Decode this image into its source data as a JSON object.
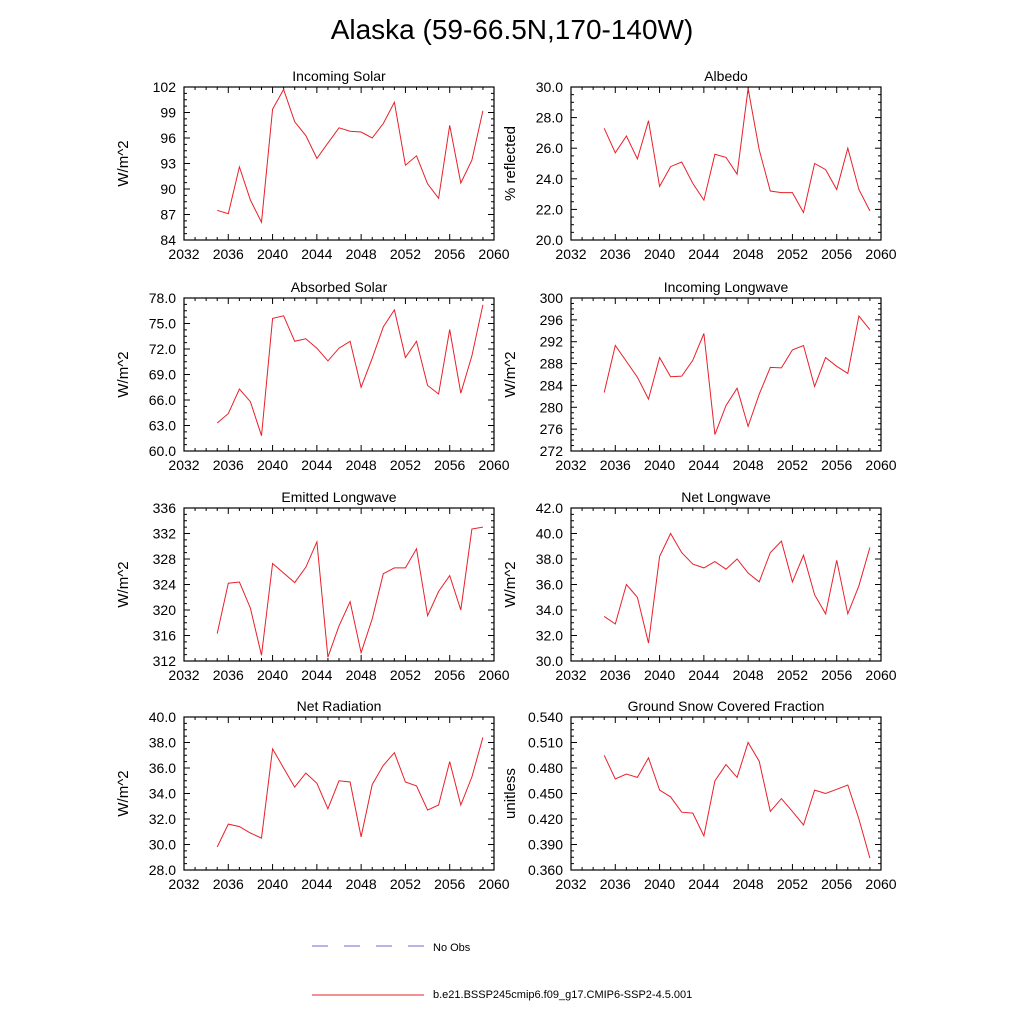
{
  "title": "Alaska (59-66.5N,170-140W)",
  "legend": {
    "obs_label": "No Obs",
    "model_label": "b.e21.BSSP245cmip6.f09_g17.CMIP6-SSP2-4.5.001",
    "obs_color": "#6b6bd6",
    "model_color": "#e8202a"
  },
  "chart_data": [
    {
      "type": "line",
      "title": "Incoming Solar",
      "ylabel": "W/m^2",
      "xlim": [
        2032,
        2060
      ],
      "ylim": [
        84,
        102
      ],
      "xticks": [
        2032,
        2036,
        2040,
        2044,
        2048,
        2052,
        2056,
        2060
      ],
      "yticks": [
        "84",
        "87",
        "90",
        "93",
        "96",
        "99",
        "102"
      ],
      "series": [
        {
          "x": [
            2035,
            2036,
            2037,
            2038,
            2039,
            2040,
            2041,
            2042,
            2043,
            2044,
            2045,
            2046,
            2047,
            2048,
            2049,
            2050,
            2051,
            2052,
            2053,
            2054,
            2055,
            2056,
            2057,
            2058,
            2059
          ],
          "values": [
            87.5,
            87.1,
            92.6,
            88.7,
            86.1,
            99.4,
            101.7,
            97.9,
            96.3,
            93.6,
            95.4,
            97.2,
            96.8,
            96.7,
            96.0,
            97.7,
            100.2,
            92.8,
            93.9,
            90.6,
            88.9,
            97.5,
            90.7,
            93.4,
            99.2
          ]
        }
      ]
    },
    {
      "type": "line",
      "title": "Albedo",
      "ylabel": "% reflected",
      "xlim": [
        2032,
        2060
      ],
      "ylim": [
        20,
        30
      ],
      "xticks": [
        2032,
        2036,
        2040,
        2044,
        2048,
        2052,
        2056,
        2060
      ],
      "yticks": [
        "20.0",
        "22.0",
        "24.0",
        "26.0",
        "28.0",
        "30.0"
      ],
      "series": [
        {
          "x": [
            2035,
            2036,
            2037,
            2038,
            2039,
            2040,
            2041,
            2042,
            2043,
            2044,
            2045,
            2046,
            2047,
            2048,
            2049,
            2050,
            2051,
            2052,
            2053,
            2054,
            2055,
            2056,
            2057,
            2058,
            2059
          ],
          "values": [
            27.3,
            25.7,
            26.8,
            25.3,
            27.8,
            23.5,
            24.8,
            25.1,
            23.7,
            22.6,
            25.6,
            25.4,
            24.3,
            29.9,
            25.9,
            23.2,
            23.1,
            23.1,
            21.8,
            25.0,
            24.6,
            23.3,
            26.0,
            23.3,
            21.9
          ]
        }
      ]
    },
    {
      "type": "line",
      "title": "Absorbed Solar",
      "ylabel": "W/m^2",
      "xlim": [
        2032,
        2060
      ],
      "ylim": [
        60,
        78
      ],
      "xticks": [
        2032,
        2036,
        2040,
        2044,
        2048,
        2052,
        2056,
        2060
      ],
      "yticks": [
        "60.0",
        "63.0",
        "66.0",
        "69.0",
        "72.0",
        "75.0",
        "78.0"
      ],
      "series": [
        {
          "x": [
            2035,
            2036,
            2037,
            2038,
            2039,
            2040,
            2041,
            2042,
            2043,
            2044,
            2045,
            2046,
            2047,
            2048,
            2049,
            2050,
            2051,
            2052,
            2053,
            2054,
            2055,
            2056,
            2057,
            2058,
            2059
          ],
          "values": [
            63.3,
            64.4,
            67.3,
            65.8,
            61.8,
            75.6,
            75.9,
            72.9,
            73.2,
            72.1,
            70.6,
            72.1,
            72.9,
            67.5,
            70.9,
            74.6,
            76.6,
            71.0,
            72.9,
            67.7,
            66.7,
            74.3,
            66.8,
            71.2,
            77.2
          ]
        }
      ]
    },
    {
      "type": "line",
      "title": "Incoming Longwave",
      "ylabel": "W/m^2",
      "xlim": [
        2032,
        2060
      ],
      "ylim": [
        272,
        300
      ],
      "xticks": [
        2032,
        2036,
        2040,
        2044,
        2048,
        2052,
        2056,
        2060
      ],
      "yticks": [
        "272",
        "276",
        "280",
        "284",
        "288",
        "292",
        "296",
        "300"
      ],
      "series": [
        {
          "x": [
            2035,
            2036,
            2037,
            2038,
            2039,
            2040,
            2041,
            2042,
            2043,
            2044,
            2045,
            2046,
            2047,
            2048,
            2049,
            2050,
            2051,
            2052,
            2053,
            2054,
            2055,
            2056,
            2057,
            2058,
            2059
          ],
          "values": [
            282.7,
            291.3,
            288.4,
            285.5,
            281.5,
            289.1,
            285.6,
            285.7,
            288.6,
            293.5,
            275.0,
            280.3,
            283.5,
            276.5,
            282.4,
            287.3,
            287.2,
            290.5,
            291.3,
            283.8,
            289.1,
            287.5,
            286.2,
            296.7,
            294.2
          ]
        }
      ]
    },
    {
      "type": "line",
      "title": "Emitted Longwave",
      "ylabel": "W/m^2",
      "xlim": [
        2032,
        2060
      ],
      "ylim": [
        312,
        336
      ],
      "xticks": [
        2032,
        2036,
        2040,
        2044,
        2048,
        2052,
        2056,
        2060
      ],
      "yticks": [
        "312",
        "316",
        "320",
        "324",
        "328",
        "332",
        "336"
      ],
      "series": [
        {
          "x": [
            2035,
            2036,
            2037,
            2038,
            2039,
            2040,
            2041,
            2042,
            2043,
            2044,
            2045,
            2046,
            2047,
            2048,
            2049,
            2050,
            2051,
            2052,
            2053,
            2054,
            2055,
            2056,
            2057,
            2058,
            2059
          ],
          "values": [
            316.3,
            324.2,
            324.4,
            320.3,
            312.9,
            327.3,
            325.8,
            324.3,
            326.7,
            330.7,
            312.6,
            317.5,
            321.3,
            313.3,
            318.6,
            325.7,
            326.6,
            326.6,
            329.6,
            319.1,
            322.9,
            325.4,
            320.0,
            332.7,
            333.0
          ]
        }
      ]
    },
    {
      "type": "line",
      "title": "Net Longwave",
      "ylabel": "W/m^2",
      "xlim": [
        2032,
        2060
      ],
      "ylim": [
        30,
        42
      ],
      "xticks": [
        2032,
        2036,
        2040,
        2044,
        2048,
        2052,
        2056,
        2060
      ],
      "yticks": [
        "30.0",
        "32.0",
        "34.0",
        "36.0",
        "38.0",
        "40.0",
        "42.0"
      ],
      "series": [
        {
          "x": [
            2035,
            2036,
            2037,
            2038,
            2039,
            2040,
            2041,
            2042,
            2043,
            2044,
            2045,
            2046,
            2047,
            2048,
            2049,
            2050,
            2051,
            2052,
            2053,
            2054,
            2055,
            2056,
            2057,
            2058,
            2059
          ],
          "values": [
            33.5,
            32.9,
            36.0,
            35.0,
            31.4,
            38.2,
            40.0,
            38.5,
            37.6,
            37.3,
            37.8,
            37.2,
            38.0,
            36.9,
            36.2,
            38.5,
            39.4,
            36.2,
            38.3,
            35.2,
            33.7,
            37.9,
            33.7,
            35.9,
            38.9
          ]
        }
      ]
    },
    {
      "type": "line",
      "title": "Net Radiation",
      "ylabel": "W/m^2",
      "xlim": [
        2032,
        2060
      ],
      "ylim": [
        28,
        40
      ],
      "xticks": [
        2032,
        2036,
        2040,
        2044,
        2048,
        2052,
        2056,
        2060
      ],
      "yticks": [
        "28.0",
        "30.0",
        "32.0",
        "34.0",
        "36.0",
        "38.0",
        "40.0"
      ],
      "series": [
        {
          "x": [
            2035,
            2036,
            2037,
            2038,
            2039,
            2040,
            2041,
            2042,
            2043,
            2044,
            2045,
            2046,
            2047,
            2048,
            2049,
            2050,
            2051,
            2052,
            2053,
            2054,
            2055,
            2056,
            2057,
            2058,
            2059
          ],
          "values": [
            29.8,
            31.6,
            31.4,
            30.9,
            30.5,
            37.5,
            36.0,
            34.5,
            35.6,
            34.8,
            32.8,
            35.0,
            34.9,
            30.6,
            34.7,
            36.2,
            37.2,
            34.9,
            34.6,
            32.7,
            33.1,
            36.5,
            33.1,
            35.3,
            38.4
          ]
        }
      ]
    },
    {
      "type": "line",
      "title": "Ground Snow Covered Fraction",
      "ylabel": "unitless",
      "xlim": [
        2032,
        2060
      ],
      "ylim": [
        0.36,
        0.54
      ],
      "xticks": [
        2032,
        2036,
        2040,
        2044,
        2048,
        2052,
        2056,
        2060
      ],
      "yticks": [
        "0.360",
        "0.390",
        "0.420",
        "0.450",
        "0.480",
        "0.510",
        "0.540"
      ],
      "series": [
        {
          "x": [
            2035,
            2036,
            2037,
            2038,
            2039,
            2040,
            2041,
            2042,
            2043,
            2044,
            2045,
            2046,
            2047,
            2048,
            2049,
            2050,
            2051,
            2052,
            2053,
            2054,
            2055,
            2056,
            2057,
            2058,
            2059
          ],
          "values": [
            0.495,
            0.467,
            0.473,
            0.469,
            0.492,
            0.454,
            0.446,
            0.428,
            0.427,
            0.4,
            0.465,
            0.484,
            0.469,
            0.51,
            0.488,
            0.429,
            0.444,
            0.429,
            0.413,
            0.454,
            0.45,
            0.455,
            0.46,
            0.42,
            0.374
          ]
        }
      ]
    }
  ]
}
